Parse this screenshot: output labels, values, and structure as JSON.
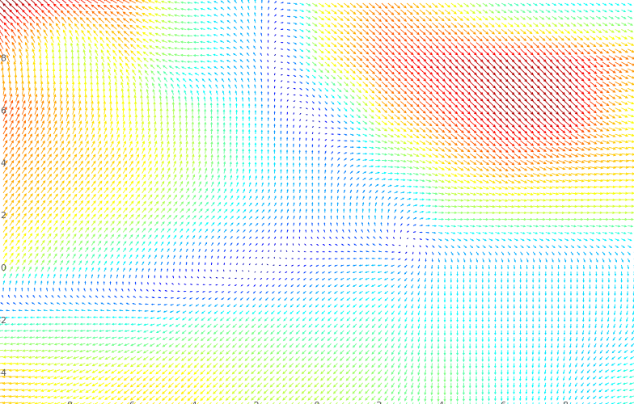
{
  "chart_data": {
    "type": "quiver",
    "title": "",
    "xlabel": "",
    "ylabel": "",
    "xlim": [
      -10.2,
      10.2
    ],
    "ylim": [
      -5.2,
      10.2
    ],
    "x_ticks": [
      "-8",
      "-6",
      "-4",
      "-2",
      "0",
      "2",
      "4",
      "6",
      "8"
    ],
    "y_ticks": [
      "8",
      "6",
      "4",
      "2",
      "0",
      "-2",
      "-4"
    ],
    "grid": false,
    "colormap": "jet",
    "color_encodes": "vector magnitude",
    "sample_x": [
      -10,
      -8,
      -6,
      -4,
      -2,
      0,
      2,
      4,
      6,
      8,
      10
    ],
    "sample_y": [
      10,
      8,
      6,
      4,
      2,
      0,
      -2,
      -4
    ],
    "vectors_uv": [
      [
        [
          -0.65,
          0.6
        ],
        [
          -0.6,
          0.5
        ],
        [
          -0.6,
          0.35
        ],
        [
          -0.4,
          0.05
        ],
        [
          -0.05,
          0.3
        ],
        [
          0.45,
          -0.3
        ],
        [
          0.5,
          -0.45
        ],
        [
          0.45,
          -0.35
        ],
        [
          0.35,
          -0.2
        ],
        [
          0.3,
          -0.15
        ],
        [
          0.3,
          -0.15
        ]
      ],
      [
        [
          -0.3,
          0.6
        ],
        [
          0,
          0.5
        ],
        [
          -0.4,
          0.45
        ],
        [
          -0.45,
          0
        ],
        [
          -0.15,
          0.2
        ],
        [
          0.4,
          -0.35
        ],
        [
          0.55,
          -0.5
        ],
        [
          0.6,
          -0.55
        ],
        [
          0.6,
          -0.6
        ],
        [
          0.6,
          -0.55
        ],
        [
          0.6,
          -0.3
        ]
      ],
      [
        [
          0.3,
          0.65
        ],
        [
          0.15,
          0.6
        ],
        [
          0,
          0.55
        ],
        [
          0,
          0.45
        ],
        [
          0,
          0.3
        ],
        [
          0.05,
          -0.1
        ],
        [
          0.45,
          -0.4
        ],
        [
          0.55,
          -0.5
        ],
        [
          0.6,
          -0.6
        ],
        [
          0.6,
          -0.6
        ],
        [
          0.5,
          -0.2
        ]
      ],
      [
        [
          0.35,
          0.55
        ],
        [
          0.35,
          0.5
        ],
        [
          0.3,
          0.5
        ],
        [
          0.1,
          0.5
        ],
        [
          0,
          0.35
        ],
        [
          0,
          0.25
        ],
        [
          0.4,
          0
        ],
        [
          0.5,
          -0.3
        ],
        [
          0.55,
          -0.4
        ],
        [
          0.6,
          -0.2
        ],
        [
          0.6,
          -0.05
        ]
      ],
      [
        [
          0.35,
          0.5
        ],
        [
          0.35,
          0.45
        ],
        [
          0.35,
          0.4
        ],
        [
          0.3,
          0.3
        ],
        [
          0.2,
          0.2
        ],
        [
          0,
          0.25
        ],
        [
          0,
          0.3
        ],
        [
          0.45,
          0
        ],
        [
          0.5,
          0
        ],
        [
          0.5,
          0
        ],
        [
          0.5,
          0
        ]
      ],
      [
        [
          0.3,
          0.45
        ],
        [
          0.2,
          0.35
        ],
        [
          0.15,
          0.25
        ],
        [
          0,
          0.15
        ],
        [
          0.02,
          0.02
        ],
        [
          -0.15,
          -0.1
        ],
        [
          -0.3,
          -0.05
        ],
        [
          0,
          -0.3
        ],
        [
          0,
          -0.3
        ],
        [
          0,
          -0.3
        ],
        [
          0.05,
          -0.3
        ]
      ],
      [
        [
          -0.35,
          -0.05
        ],
        [
          -0.4,
          0
        ],
        [
          -0.35,
          0
        ],
        [
          -0.3,
          -0.25
        ],
        [
          -0.3,
          -0.3
        ],
        [
          -0.25,
          -0.25
        ],
        [
          -0.25,
          -0.3
        ],
        [
          0,
          -0.35
        ],
        [
          0,
          -0.3
        ],
        [
          0,
          -0.3
        ],
        [
          -0.1,
          -0.3
        ]
      ],
      [
        [
          -0.6,
          -0.05
        ],
        [
          -0.5,
          -0.2
        ],
        [
          -0.45,
          -0.35
        ],
        [
          -0.4,
          -0.4
        ],
        [
          -0.35,
          -0.35
        ],
        [
          -0.35,
          -0.35
        ],
        [
          -0.3,
          -0.35
        ],
        [
          0,
          -0.45
        ],
        [
          0,
          -0.35
        ],
        [
          -0.1,
          -0.3
        ],
        [
          -0.35,
          -0.1
        ]
      ]
    ]
  }
}
